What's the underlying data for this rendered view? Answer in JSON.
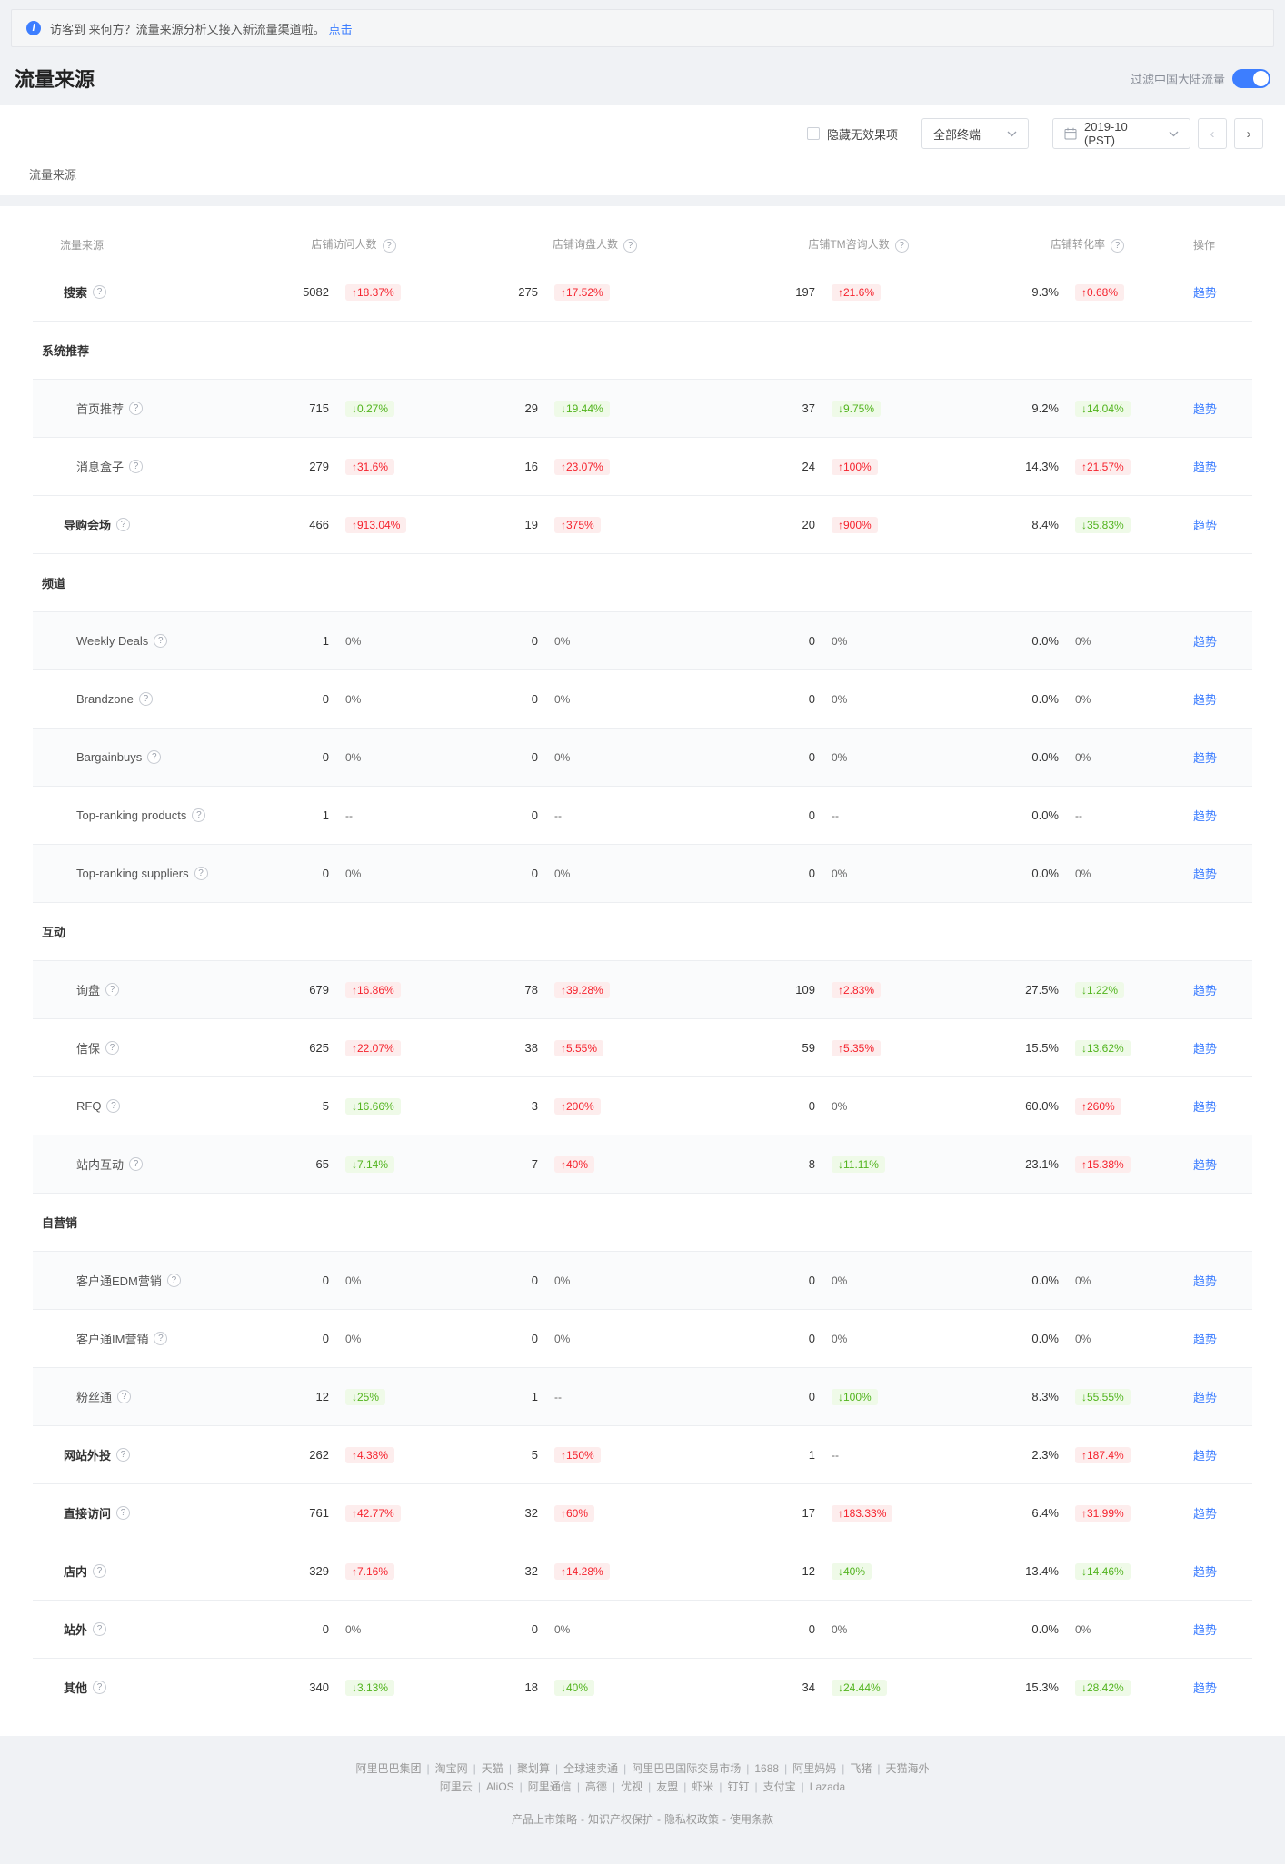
{
  "banner": {
    "text": "访客到 来何方？流量来源分析又接入新流量渠道啦。",
    "link": "点击"
  },
  "header": {
    "title": "流量来源",
    "filter_toggle_label": "过滤中国大陆流量",
    "toggle_on": true
  },
  "controls": {
    "hide_checkbox_label": "隐藏无效果项",
    "terminal_select_value": "全部终端",
    "date_value": "2019-10 (PST)"
  },
  "section_caption": "流量来源",
  "icons": {
    "info": "i",
    "help": "?",
    "prev": "‹",
    "next": "›",
    "up_arrow": "↑",
    "down_arrow": "↓"
  },
  "colors": {
    "accent_blue": "#3d7eff",
    "up_red": "#f5222d",
    "down_green": "#52b41e"
  },
  "table": {
    "columns": [
      "流量来源",
      "店铺访问人数",
      "店铺询盘人数",
      "店铺TM咨询人数",
      "店铺转化率",
      "操作"
    ],
    "action_label": "趋势",
    "rows": [
      {
        "type": "row",
        "level": "top",
        "label": "搜索",
        "help": true,
        "shaded": false,
        "values": [
          "5082",
          "275",
          "197",
          "9.3%"
        ],
        "changes": [
          "+18.37%",
          "+17.52%",
          "+21.6%",
          "+0.68%"
        ]
      },
      {
        "type": "section",
        "label": "系统推荐"
      },
      {
        "type": "row",
        "level": "sub",
        "label": "首页推荐",
        "help": true,
        "shaded": true,
        "values": [
          "715",
          "29",
          "37",
          "9.2%"
        ],
        "changes": [
          "-0.27%",
          "-19.44%",
          "-9.75%",
          "-14.04%"
        ]
      },
      {
        "type": "row",
        "level": "sub",
        "label": "消息盒子",
        "help": true,
        "shaded": false,
        "values": [
          "279",
          "16",
          "24",
          "14.3%"
        ],
        "changes": [
          "+31.6%",
          "+23.07%",
          "+100%",
          "+21.57%"
        ]
      },
      {
        "type": "row",
        "level": "top",
        "label": "导购会场",
        "help": true,
        "shaded": false,
        "values": [
          "466",
          "19",
          "20",
          "8.4%"
        ],
        "changes": [
          "+913.04%",
          "+375%",
          "+900%",
          "-35.83%"
        ]
      },
      {
        "type": "section",
        "label": "频道"
      },
      {
        "type": "row",
        "level": "sub",
        "label": "Weekly Deals",
        "help": true,
        "shaded": true,
        "values": [
          "1",
          "0",
          "0",
          "0.0%"
        ],
        "changes": [
          "0%",
          "0%",
          "0%",
          "0%"
        ]
      },
      {
        "type": "row",
        "level": "sub",
        "label": "Brandzone",
        "help": true,
        "shaded": false,
        "values": [
          "0",
          "0",
          "0",
          "0.0%"
        ],
        "changes": [
          "0%",
          "0%",
          "0%",
          "0%"
        ]
      },
      {
        "type": "row",
        "level": "sub",
        "label": "Bargainbuys",
        "help": true,
        "shaded": true,
        "values": [
          "0",
          "0",
          "0",
          "0.0%"
        ],
        "changes": [
          "0%",
          "0%",
          "0%",
          "0%"
        ]
      },
      {
        "type": "row",
        "level": "sub",
        "label": "Top-ranking products",
        "help": true,
        "shaded": false,
        "values": [
          "1",
          "0",
          "0",
          "0.0%"
        ],
        "changes": [
          "--",
          "--",
          "--",
          "--"
        ]
      },
      {
        "type": "row",
        "level": "sub",
        "label": "Top-ranking suppliers",
        "help": true,
        "shaded": true,
        "values": [
          "0",
          "0",
          "0",
          "0.0%"
        ],
        "changes": [
          "0%",
          "0%",
          "0%",
          "0%"
        ]
      },
      {
        "type": "section",
        "label": "互动"
      },
      {
        "type": "row",
        "level": "sub",
        "label": "询盘",
        "help": true,
        "shaded": true,
        "values": [
          "679",
          "78",
          "109",
          "27.5%"
        ],
        "changes": [
          "+16.86%",
          "+39.28%",
          "+2.83%",
          "-1.22%"
        ]
      },
      {
        "type": "row",
        "level": "sub",
        "label": "信保",
        "help": true,
        "shaded": false,
        "values": [
          "625",
          "38",
          "59",
          "15.5%"
        ],
        "changes": [
          "+22.07%",
          "+5.55%",
          "+5.35%",
          "-13.62%"
        ]
      },
      {
        "type": "row",
        "level": "sub",
        "label": "RFQ",
        "help": true,
        "shaded": false,
        "values": [
          "5",
          "3",
          "0",
          "60.0%"
        ],
        "changes": [
          "-16.66%",
          "+200%",
          "0%",
          "+260%"
        ]
      },
      {
        "type": "row",
        "level": "sub",
        "label": "站内互动",
        "help": true,
        "shaded": true,
        "values": [
          "65",
          "7",
          "8",
          "23.1%"
        ],
        "changes": [
          "-7.14%",
          "+40%",
          "-11.11%",
          "+15.38%"
        ]
      },
      {
        "type": "section",
        "label": "自营销"
      },
      {
        "type": "row",
        "level": "sub",
        "label": "客户通EDM营销",
        "help": true,
        "shaded": true,
        "values": [
          "0",
          "0",
          "0",
          "0.0%"
        ],
        "changes": [
          "0%",
          "0%",
          "0%",
          "0%"
        ]
      },
      {
        "type": "row",
        "level": "sub",
        "label": "客户通IM营销",
        "help": true,
        "shaded": false,
        "values": [
          "0",
          "0",
          "0",
          "0.0%"
        ],
        "changes": [
          "0%",
          "0%",
          "0%",
          "0%"
        ]
      },
      {
        "type": "row",
        "level": "sub",
        "label": "粉丝通",
        "help": true,
        "shaded": true,
        "values": [
          "12",
          "1",
          "0",
          "8.3%"
        ],
        "changes": [
          "-25%",
          "--",
          "-100%",
          "-55.55%"
        ]
      },
      {
        "type": "row",
        "level": "top",
        "label": "网站外投",
        "help": true,
        "shaded": false,
        "values": [
          "262",
          "5",
          "1",
          "2.3%"
        ],
        "changes": [
          "+4.38%",
          "+150%",
          "--",
          "+187.4%"
        ]
      },
      {
        "type": "row",
        "level": "top",
        "label": "直接访问",
        "help": true,
        "shaded": false,
        "values": [
          "761",
          "32",
          "17",
          "6.4%"
        ],
        "changes": [
          "+42.77%",
          "+60%",
          "+183.33%",
          "+31.99%"
        ]
      },
      {
        "type": "row",
        "level": "top",
        "label": "店内",
        "help": true,
        "shaded": false,
        "values": [
          "329",
          "32",
          "12",
          "13.4%"
        ],
        "changes": [
          "+7.16%",
          "+14.28%",
          "-40%",
          "-14.46%"
        ]
      },
      {
        "type": "row",
        "level": "top",
        "label": "站外",
        "help": true,
        "shaded": false,
        "values": [
          "0",
          "0",
          "0",
          "0.0%"
        ],
        "changes": [
          "0%",
          "0%",
          "0%",
          "0%"
        ]
      },
      {
        "type": "row",
        "level": "top",
        "label": "其他",
        "help": true,
        "shaded": false,
        "values": [
          "340",
          "18",
          "34",
          "15.3%"
        ],
        "changes": [
          "-3.13%",
          "-40%",
          "-24.44%",
          "-28.42%"
        ]
      }
    ]
  },
  "footer": {
    "line1": [
      "阿里巴巴集团",
      "淘宝网",
      "天猫",
      "聚划算",
      "全球速卖通",
      "阿里巴巴国际交易市场",
      "1688",
      "阿里妈妈",
      "飞猪",
      "天猫海外"
    ],
    "line2": [
      "阿里云",
      "AliOS",
      "阿里通信",
      "高德",
      "优视",
      "友盟",
      "虾米",
      "钉钉",
      "支付宝",
      "Lazada"
    ],
    "line3": [
      "产品上市策略",
      "知识产权保护",
      "隐私权政策",
      "使用条款"
    ]
  }
}
